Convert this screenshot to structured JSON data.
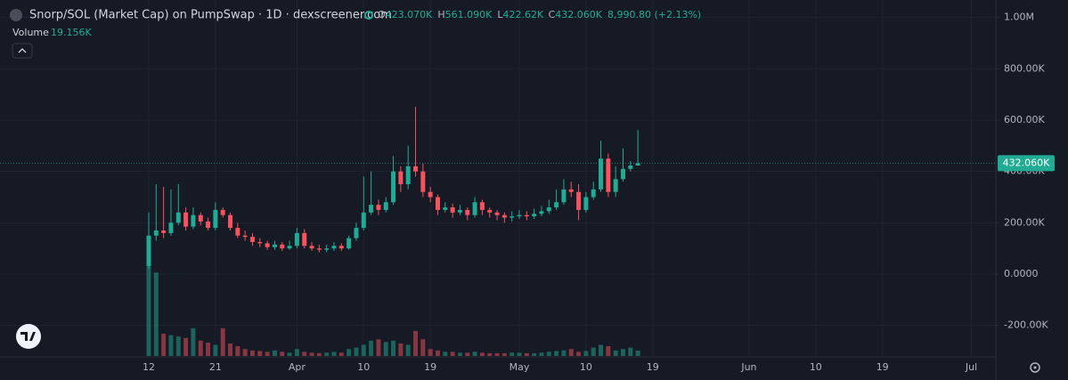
{
  "chart_data": {
    "type": "candlestick",
    "title": "Snorp/SOL (Market Cap) on PumpSwap · 1D · dexscreener.com",
    "ohlc": [
      {
        "key": "O",
        "text": "423.070K"
      },
      {
        "key": "H",
        "text": "561.090K"
      },
      {
        "key": "L",
        "text": "422.62K"
      },
      {
        "key": "C",
        "text": "432.060K"
      }
    ],
    "change": "8,990.80 (+2.13%)",
    "up_color": "#22ab94",
    "down_color": "#f7525f",
    "x": [
      0,
      1,
      2,
      3,
      4,
      5,
      6,
      7,
      8,
      9,
      10,
      11,
      12,
      13,
      14,
      15,
      16,
      17,
      18,
      19,
      20,
      21,
      22,
      23,
      24,
      25,
      26,
      27,
      28,
      29,
      30,
      31,
      32,
      33,
      34,
      35,
      36,
      37,
      38,
      39,
      40,
      41,
      42,
      43,
      44,
      45,
      46,
      47,
      48,
      49,
      50,
      51,
      52,
      53,
      54,
      55,
      56,
      57,
      58,
      59,
      60,
      61,
      62,
      63,
      64,
      65,
      66
    ],
    "open": [
      30,
      150,
      170,
      160,
      200,
      240,
      185,
      230,
      205,
      180,
      250,
      230,
      180,
      150,
      145,
      125,
      120,
      105,
      115,
      100,
      110,
      160,
      110,
      100,
      95,
      100,
      110,
      100,
      140,
      180,
      240,
      270,
      250,
      280,
      400,
      350,
      420,
      400,
      320,
      300,
      250,
      260,
      240,
      250,
      230,
      280,
      250,
      240,
      230,
      220,
      225,
      230,
      225,
      235,
      245,
      260,
      280,
      330,
      320,
      250,
      300,
      330,
      450,
      320,
      370,
      410,
      423.07
    ],
    "high": [
      240,
      350,
      340,
      330,
      350,
      260,
      260,
      240,
      220,
      280,
      260,
      240,
      200,
      170,
      160,
      140,
      130,
      130,
      125,
      130,
      180,
      175,
      125,
      115,
      115,
      125,
      120,
      150,
      200,
      380,
      400,
      290,
      300,
      460,
      420,
      500,
      652,
      430,
      340,
      310,
      280,
      275,
      270,
      260,
      300,
      290,
      260,
      250,
      240,
      245,
      250,
      245,
      255,
      265,
      290,
      330,
      370,
      360,
      350,
      320,
      360,
      520,
      470,
      420,
      490,
      440,
      561.09
    ],
    "low": [
      20,
      130,
      140,
      150,
      190,
      170,
      175,
      190,
      170,
      170,
      220,
      170,
      140,
      130,
      110,
      105,
      95,
      95,
      90,
      95,
      100,
      100,
      90,
      85,
      85,
      90,
      90,
      95,
      130,
      170,
      230,
      230,
      240,
      270,
      320,
      330,
      380,
      300,
      280,
      230,
      240,
      220,
      230,
      210,
      220,
      230,
      220,
      210,
      200,
      205,
      215,
      210,
      215,
      225,
      235,
      250,
      270,
      300,
      210,
      240,
      290,
      320,
      300,
      300,
      360,
      400,
      422.62
    ],
    "close": [
      150,
      170,
      160,
      200,
      240,
      185,
      230,
      205,
      180,
      250,
      230,
      180,
      150,
      145,
      125,
      120,
      105,
      115,
      100,
      110,
      160,
      110,
      100,
      95,
      100,
      110,
      100,
      140,
      180,
      240,
      270,
      250,
      280,
      400,
      350,
      420,
      400,
      320,
      300,
      250,
      260,
      240,
      250,
      230,
      280,
      250,
      240,
      230,
      220,
      225,
      230,
      225,
      235,
      245,
      260,
      280,
      330,
      320,
      250,
      300,
      330,
      450,
      320,
      370,
      410,
      423,
      432.06
    ],
    "volume": {
      "name": "Volume",
      "value_label": "19.156K",
      "ylim": [
        0,
        1280
      ],
      "values": [
        320,
        300,
        80,
        75,
        70,
        65,
        100,
        55,
        48,
        40,
        100,
        45,
        35,
        25,
        20,
        18,
        15,
        20,
        15,
        12,
        25,
        15,
        12,
        10,
        12,
        15,
        12,
        25,
        30,
        40,
        55,
        60,
        50,
        55,
        45,
        40,
        90,
        60,
        25,
        20,
        15,
        15,
        12,
        12,
        15,
        12,
        10,
        10,
        10,
        12,
        12,
        10,
        10,
        12,
        15,
        18,
        20,
        25,
        15,
        18,
        30,
        40,
        35,
        20,
        25,
        30,
        19.156
      ]
    },
    "last_price": {
      "value": 432.06,
      "label": "432.060K"
    },
    "xlim": [
      -20.07,
      114.3
    ],
    "xticks": [
      {
        "value": 0,
        "label": "12"
      },
      {
        "value": 9,
        "label": "21"
      },
      {
        "value": 20,
        "label": "Apr"
      },
      {
        "value": 29,
        "label": "10"
      },
      {
        "value": 38,
        "label": "19"
      },
      {
        "value": 50,
        "label": "May"
      },
      {
        "value": 59,
        "label": "10"
      },
      {
        "value": 68,
        "label": "19"
      },
      {
        "value": 81,
        "label": "Jun"
      },
      {
        "value": 90,
        "label": "10"
      },
      {
        "value": 99,
        "label": "19"
      },
      {
        "value": 111,
        "label": "Jul"
      }
    ],
    "ylim": [
      -319,
      1068
    ],
    "yticks": [
      {
        "value": 1000,
        "label": "1.00M"
      },
      {
        "value": 800,
        "label": "800.00K"
      },
      {
        "value": 600,
        "label": "600.00K"
      },
      {
        "value": 400,
        "label": "400.00K"
      },
      {
        "value": 200,
        "label": "200.00K"
      },
      {
        "value": 0,
        "label": "0.0000"
      },
      {
        "value": -200,
        "label": "-200.00K"
      }
    ],
    "grid": true
  }
}
